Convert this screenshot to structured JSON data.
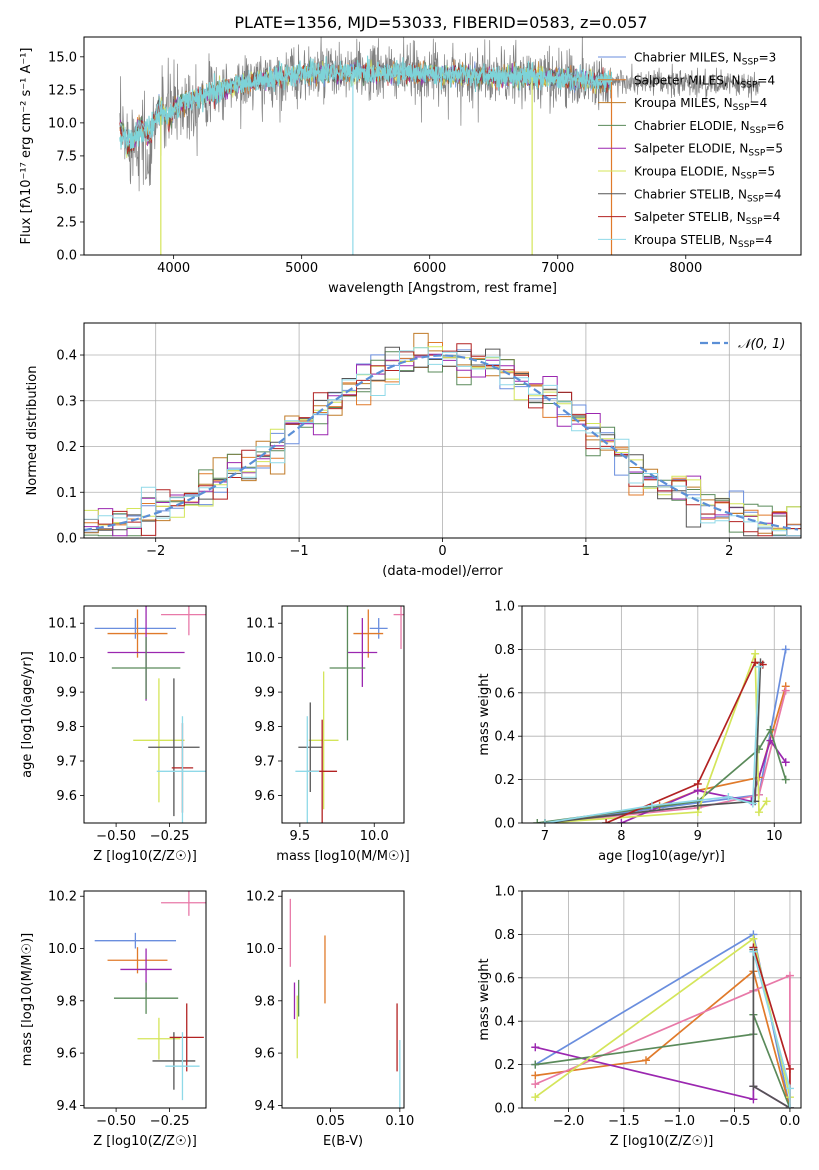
{
  "colors": [
    "#6a8ede",
    "#e07a2a",
    "#c07b28",
    "#5a8a5a",
    "#9b27b0",
    "#d4e55a",
    "#555555",
    "#b22222",
    "#8fd9e8",
    "#e879a8",
    "#808080",
    "#7dd3d8"
  ],
  "chart_data": [
    {
      "id": "spectrum",
      "type": "line",
      "title": "PLATE=1356, MJD=53033, FIBERID=0583, z=0.057",
      "xlabel": "wavelength [Angstrom, rest frame]",
      "ylabel": "Flux [fλ10⁻¹⁷ erg cm⁻² s⁻¹ A⁻¹]",
      "xlim": [
        3300,
        8900
      ],
      "ylim": [
        0,
        16.5
      ],
      "xticks": [
        4000,
        5000,
        6000,
        7000,
        8000
      ],
      "yticks": [
        0.0,
        2.5,
        5.0,
        7.5,
        10.0,
        12.5,
        15.0
      ],
      "grid": false,
      "legend_position": "upper right",
      "legend": [
        "Chabrier MILES, N_SSP=3",
        "Salpeter MILES, N_SSP=4",
        "Kroupa MILES, N_SSP=4",
        "Chabrier ELODIE, N_SSP=6",
        "Salpeter ELODIE, N_SSP=5",
        "Kroupa ELODIE, N_SSP=5",
        "Chabrier STELIB, N_SSP=4",
        "Salpeter STELIB, N_SSP=4",
        "Kroupa STELIB, N_SSP=4"
      ],
      "continuum": [
        [
          3580,
          9.0
        ],
        [
          3700,
          8.8
        ],
        [
          3900,
          10.5
        ],
        [
          4000,
          11.2
        ],
        [
          4200,
          12.0
        ],
        [
          4500,
          12.9
        ],
        [
          5000,
          13.7
        ],
        [
          5500,
          13.8
        ],
        [
          6000,
          13.7
        ],
        [
          6500,
          13.5
        ],
        [
          7000,
          13.4
        ],
        [
          7400,
          13.1
        ],
        [
          7600,
          13.0
        ],
        [
          8000,
          13.0
        ],
        [
          8300,
          12.9
        ],
        [
          8500,
          12.9
        ]
      ],
      "data_xrange": [
        3580,
        8580
      ],
      "model_xrange": [
        3580,
        7420
      ],
      "absorption_features": [
        [
          3900,
          0.0
        ],
        [
          5400,
          0.0
        ],
        [
          6800,
          0.0
        ],
        [
          7420,
          0.0
        ],
        [
          3800,
          6.5
        ],
        [
          4300,
          10.0
        ]
      ]
    },
    {
      "id": "residual_hist",
      "type": "bar",
      "xlabel": "(data-model)/error",
      "ylabel": "Normed distribution",
      "xlim": [
        -2.5,
        2.5
      ],
      "ylim": [
        0,
        0.47
      ],
      "xticks": [
        -2,
        -1,
        0,
        1,
        2
      ],
      "yticks": [
        0.0,
        0.1,
        0.2,
        0.3,
        0.4
      ],
      "grid": true,
      "reference_curve": "N(0,1)",
      "legend": [
        "𝒩(0, 1)"
      ],
      "bin_width": 0.1
    },
    {
      "id": "age_vs_Z",
      "type": "scatter",
      "xlabel": "Z [log10(Z/Z☉)]",
      "ylabel": "age  [log10(age/yr)]",
      "xlim": [
        -0.65,
        -0.08
      ],
      "ylim": [
        9.52,
        10.15
      ],
      "xticks": [
        -0.5,
        -0.25
      ],
      "yticks": [
        9.6,
        9.7,
        9.8,
        9.9,
        10.0,
        10.1
      ],
      "points": [
        {
          "x": -0.41,
          "y": 10.085,
          "xerr": 0.19,
          "yerr": 0.03,
          "color": 0
        },
        {
          "x": -0.4,
          "y": 10.07,
          "xerr": 0.14,
          "yerr": 0.07,
          "color": 1
        },
        {
          "x": -0.16,
          "y": 10.125,
          "xerr": 0.13,
          "yerr": 0.06,
          "color": 9
        },
        {
          "x": -0.36,
          "y": 10.015,
          "xerr": 0.18,
          "yerr": 0.14,
          "color": 4
        },
        {
          "x": -0.36,
          "y": 9.97,
          "xerr": 0.16,
          "yerr": 0.09,
          "color": 3
        },
        {
          "x": -0.3,
          "y": 9.76,
          "xerr": 0.12,
          "yerr": 0.18,
          "color": 5
        },
        {
          "x": -0.23,
          "y": 9.74,
          "xerr": 0.12,
          "yerr": 0.2,
          "color": 6
        },
        {
          "x": -0.19,
          "y": 9.68,
          "xerr": 0.05,
          "yerr": 0.13,
          "color": 7
        },
        {
          "x": -0.19,
          "y": 9.67,
          "xerr": 0.12,
          "yerr": 0.16,
          "color": 8
        }
      ]
    },
    {
      "id": "age_vs_mass",
      "type": "scatter",
      "xlabel": "mass [log10(M/M☉)]",
      "ylabel": "",
      "xlim": [
        9.38,
        10.2
      ],
      "ylim": [
        9.52,
        10.15
      ],
      "xticks": [
        9.5,
        10.0
      ],
      "yticks": [
        9.6,
        9.7,
        9.8,
        9.9,
        10.0,
        10.1
      ],
      "points": [
        {
          "x": 10.03,
          "y": 10.085,
          "xerr": 0.06,
          "yerr": 0.03,
          "color": 0
        },
        {
          "x": 9.96,
          "y": 10.07,
          "xerr": 0.1,
          "yerr": 0.07,
          "color": 1
        },
        {
          "x": 10.18,
          "y": 10.125,
          "xerr": 0.05,
          "yerr": 0.1,
          "color": 9
        },
        {
          "x": 9.92,
          "y": 10.015,
          "xerr": 0.1,
          "yerr": 0.1,
          "color": 4
        },
        {
          "x": 9.82,
          "y": 9.97,
          "xerr": 0.12,
          "yerr": 0.21,
          "color": 3
        },
        {
          "x": 9.66,
          "y": 9.76,
          "xerr": 0.1,
          "yerr": 0.2,
          "color": 5
        },
        {
          "x": 9.57,
          "y": 9.74,
          "xerr": 0.08,
          "yerr": 0.13,
          "color": 6
        },
        {
          "x": 9.65,
          "y": 9.67,
          "xerr": 0.1,
          "yerr": 0.15,
          "color": 7
        },
        {
          "x": 9.55,
          "y": 9.67,
          "xerr": 0.08,
          "yerr": 0.16,
          "color": 8
        }
      ]
    },
    {
      "id": "weight_vs_age",
      "type": "line",
      "xlabel": "age  [log10(age/yr)]",
      "ylabel": "mass weight",
      "xlim": [
        6.7,
        10.35
      ],
      "ylim": [
        0,
        1.0
      ],
      "xticks": [
        7,
        8,
        9,
        10
      ],
      "yticks": [
        0.0,
        0.2,
        0.4,
        0.6,
        0.8,
        1.0
      ],
      "grid": true,
      "series": [
        {
          "color": 0,
          "points": [
            [
              7.0,
              0.0
            ],
            [
              8.5,
              0.07
            ],
            [
              9.8,
              0.13
            ],
            [
              10.15,
              0.8
            ]
          ]
        },
        {
          "color": 1,
          "points": [
            [
              7.0,
              0.0
            ],
            [
              8.5,
              0.08
            ],
            [
              9.0,
              0.15
            ],
            [
              9.8,
              0.21
            ],
            [
              10.15,
              0.63
            ]
          ]
        },
        {
          "color": 9,
          "points": [
            [
              7.0,
              0.0
            ],
            [
              9.0,
              0.07
            ],
            [
              9.8,
              0.13
            ],
            [
              10.15,
              0.61
            ]
          ]
        },
        {
          "color": 4,
          "points": [
            [
              8.0,
              0.0
            ],
            [
              9.0,
              0.15
            ],
            [
              9.7,
              0.1
            ],
            [
              9.95,
              0.38
            ],
            [
              10.15,
              0.28
            ]
          ]
        },
        {
          "color": 3,
          "points": [
            [
              6.9,
              0.0
            ],
            [
              9.0,
              0.1
            ],
            [
              9.8,
              0.34
            ],
            [
              9.95,
              0.43
            ],
            [
              10.15,
              0.2
            ]
          ]
        },
        {
          "color": 5,
          "points": [
            [
              7.0,
              0.0
            ],
            [
              9.0,
              0.05
            ],
            [
              9.75,
              0.78
            ],
            [
              9.8,
              0.05
            ],
            [
              9.9,
              0.1
            ]
          ]
        },
        {
          "color": 6,
          "points": [
            [
              7.0,
              0.0
            ],
            [
              9.0,
              0.08
            ],
            [
              9.75,
              0.1
            ],
            [
              9.82,
              0.74
            ]
          ]
        },
        {
          "color": 7,
          "points": [
            [
              7.8,
              0.0
            ],
            [
              9.0,
              0.18
            ],
            [
              9.75,
              0.74
            ],
            [
              9.85,
              0.73
            ]
          ]
        },
        {
          "color": 8,
          "points": [
            [
              7.0,
              0.0
            ],
            [
              8.4,
              0.08
            ],
            [
              9.4,
              0.12
            ],
            [
              9.72,
              0.09
            ],
            [
              9.8,
              0.72
            ]
          ]
        }
      ]
    },
    {
      "id": "mass_vs_Z",
      "type": "scatter",
      "xlabel": "Z [log10(Z/Z☉)]",
      "ylabel": "mass [log10(M/M☉)]",
      "xlim": [
        -0.65,
        -0.08
      ],
      "ylim": [
        9.39,
        10.22
      ],
      "xticks": [
        -0.5,
        -0.25
      ],
      "yticks": [
        9.4,
        9.6,
        9.8,
        10.0,
        10.2
      ],
      "points": [
        {
          "x": -0.41,
          "y": 10.03,
          "xerr": 0.19,
          "yerr": 0.03,
          "color": 0
        },
        {
          "x": -0.4,
          "y": 9.955,
          "xerr": 0.14,
          "yerr": 0.05,
          "color": 1
        },
        {
          "x": -0.16,
          "y": 10.175,
          "xerr": 0.13,
          "yerr": 0.05,
          "color": 9
        },
        {
          "x": -0.36,
          "y": 9.92,
          "xerr": 0.12,
          "yerr": 0.08,
          "color": 4
        },
        {
          "x": -0.36,
          "y": 9.81,
          "xerr": 0.15,
          "yerr": 0.06,
          "color": 3
        },
        {
          "x": -0.3,
          "y": 9.655,
          "xerr": 0.1,
          "yerr": 0.08,
          "color": 5
        },
        {
          "x": -0.23,
          "y": 9.57,
          "xerr": 0.1,
          "yerr": 0.11,
          "color": 6
        },
        {
          "x": -0.17,
          "y": 9.66,
          "xerr": 0.08,
          "yerr": 0.13,
          "color": 7
        },
        {
          "x": -0.19,
          "y": 9.55,
          "xerr": 0.08,
          "yerr": 0.13,
          "color": 8
        }
      ]
    },
    {
      "id": "mass_vs_ebv",
      "type": "scatter",
      "xlabel": "E(B-V)",
      "ylabel": "",
      "xlim": [
        0.015,
        0.103
      ],
      "ylim": [
        9.39,
        10.22
      ],
      "xticks": [
        0.05,
        0.1
      ],
      "yticks": [
        9.4,
        9.6,
        9.8,
        10.0,
        10.2
      ],
      "points": [
        {
          "x": 0.046,
          "y": 9.92,
          "yerr": 0.13,
          "color": 1
        },
        {
          "x": 0.021,
          "y": 10.06,
          "yerr": 0.13,
          "color": 9
        },
        {
          "x": 0.024,
          "y": 9.8,
          "yerr": 0.07,
          "color": 4
        },
        {
          "x": 0.027,
          "y": 9.81,
          "yerr": 0.07,
          "color": 3
        },
        {
          "x": 0.026,
          "y": 9.7,
          "yerr": 0.12,
          "color": 5
        },
        {
          "x": 0.098,
          "y": 9.66,
          "yerr": 0.13,
          "color": 7
        },
        {
          "x": 0.1,
          "y": 9.52,
          "yerr": 0.13,
          "color": 8
        }
      ]
    },
    {
      "id": "weight_vs_Z",
      "type": "line",
      "xlabel": "Z [log10(Z/Z☉)]",
      "ylabel": "mass weight",
      "xlim": [
        -2.42,
        0.1
      ],
      "ylim": [
        0,
        1.0
      ],
      "xticks": [
        -2.0,
        -1.5,
        -1.0,
        -0.5,
        0.0
      ],
      "yticks": [
        0.0,
        0.2,
        0.4,
        0.6,
        0.8,
        1.0
      ],
      "grid": true,
      "series": [
        {
          "color": 0,
          "points": [
            [
              -2.3,
              0.2
            ],
            [
              -0.33,
              0.8
            ],
            [
              0.0,
              0.0
            ]
          ]
        },
        {
          "color": 1,
          "points": [
            [
              -2.3,
              0.15
            ],
            [
              -1.3,
              0.22
            ],
            [
              -0.33,
              0.63
            ],
            [
              0.0,
              0.0
            ]
          ]
        },
        {
          "color": 9,
          "points": [
            [
              -2.3,
              0.11
            ],
            [
              -0.33,
              0.54
            ],
            [
              0.0,
              0.61
            ],
            [
              0.0,
              0.0
            ]
          ]
        },
        {
          "color": 4,
          "points": [
            [
              -2.3,
              0.28
            ],
            [
              -0.33,
              0.04
            ],
            [
              -0.33,
              0.1
            ],
            [
              0.0,
              0.0
            ]
          ]
        },
        {
          "color": 3,
          "points": [
            [
              -2.3,
              0.2
            ],
            [
              -0.33,
              0.34
            ],
            [
              -0.33,
              0.43
            ],
            [
              0.0,
              0.0
            ]
          ]
        },
        {
          "color": 5,
          "points": [
            [
              -2.3,
              0.05
            ],
            [
              -0.33,
              0.78
            ],
            [
              0.0,
              0.05
            ]
          ]
        },
        {
          "color": 6,
          "points": [
            [
              -0.33,
              0.73
            ],
            [
              -0.33,
              0.1
            ],
            [
              0.0,
              0.0
            ]
          ]
        },
        {
          "color": 7,
          "points": [
            [
              -0.33,
              0.74
            ],
            [
              0.0,
              0.18
            ],
            [
              0.0,
              0.0
            ]
          ]
        },
        {
          "color": 8,
          "points": [
            [
              -0.33,
              0.72
            ],
            [
              0.0,
              0.09
            ],
            [
              0.0,
              0.0
            ]
          ]
        }
      ]
    }
  ]
}
